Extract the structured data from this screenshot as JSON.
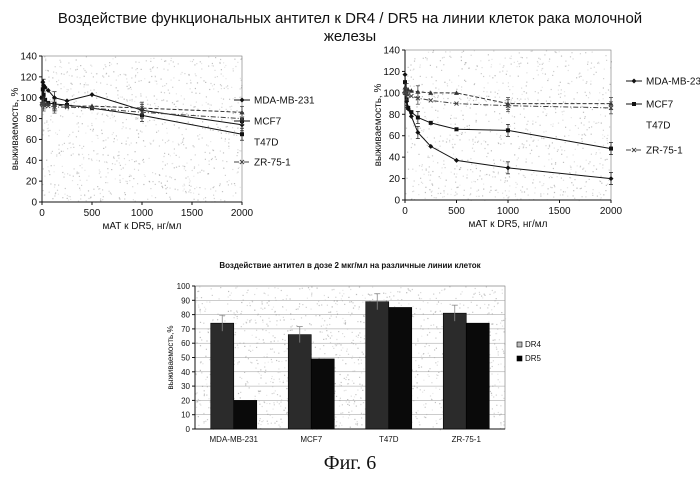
{
  "header": {
    "title_line1": "Воздействие функциональных антител к DR4 / DR5 на линии клеток рака молочной",
    "title_line2": "железы"
  },
  "chart_data": [
    {
      "type": "line",
      "xlabel": "мАТ к DR5, нг/мл",
      "ylabel": "выживаемость, %",
      "xlim": [
        0,
        2000
      ],
      "ylim": [
        0,
        140
      ],
      "xticks": [
        0,
        500,
        1000,
        1500,
        2000
      ],
      "yticks": [
        0,
        20,
        40,
        60,
        80,
        100,
        120,
        140
      ],
      "legend_position": "right",
      "series": [
        {
          "name": "MDA-MB-231",
          "x": [
            0,
            8,
            16,
            31,
            62,
            125,
            250,
            500,
            1000,
            2000
          ],
          "y": [
            100,
            115,
            112,
            110,
            107,
            100,
            97,
            103,
            88,
            74
          ]
        },
        {
          "name": "MCF7",
          "x": [
            0,
            8,
            16,
            31,
            62,
            125,
            250,
            500,
            1000,
            2000
          ],
          "y": [
            100,
            108,
            103,
            98,
            95,
            94,
            93,
            90,
            83,
            65
          ]
        },
        {
          "name": "T47D",
          "x": [
            0,
            8,
            16,
            31,
            62,
            125,
            250,
            500,
            1000,
            2000
          ],
          "y": [
            95,
            96,
            95,
            94,
            94,
            93,
            92,
            92,
            90,
            86
          ]
        },
        {
          "name": "ZR-75-1",
          "x": [
            0,
            8,
            16,
            31,
            62,
            125,
            250,
            500,
            1000,
            2000
          ],
          "y": [
            94,
            93,
            93,
            92,
            92,
            91,
            91,
            90,
            86,
            80
          ]
        }
      ]
    },
    {
      "type": "line",
      "xlabel": "мАТ к DR5, нг/мл",
      "ylabel": "выживаемость, %",
      "xlim": [
        0,
        2000
      ],
      "ylim": [
        0,
        140
      ],
      "xticks": [
        0,
        500,
        1000,
        1500,
        2000
      ],
      "yticks": [
        0,
        20,
        40,
        60,
        80,
        100,
        120,
        140
      ],
      "legend_position": "right",
      "series": [
        {
          "name": "MDA-MB-231",
          "x": [
            0,
            8,
            16,
            31,
            62,
            125,
            250,
            500,
            1000,
            2000
          ],
          "y": [
            117,
            100,
            92,
            85,
            78,
            63,
            50,
            37,
            30,
            20
          ]
        },
        {
          "name": "MCF7",
          "x": [
            0,
            8,
            16,
            31,
            62,
            125,
            250,
            500,
            1000,
            2000
          ],
          "y": [
            110,
            100,
            94,
            86,
            82,
            77,
            72,
            66,
            65,
            48
          ]
        },
        {
          "name": "T47D",
          "x": [
            0,
            8,
            16,
            31,
            62,
            125,
            250,
            500,
            1000,
            2000
          ],
          "y": [
            105,
            104,
            103,
            103,
            102,
            101,
            100,
            100,
            90,
            90
          ]
        },
        {
          "name": "ZR-75-1",
          "x": [
            0,
            8,
            16,
            31,
            62,
            125,
            250,
            500,
            1000,
            2000
          ],
          "y": [
            100,
            100,
            99,
            98,
            97,
            95,
            93,
            90,
            88,
            86
          ]
        }
      ]
    },
    {
      "type": "bar",
      "title": "Воздействие антител в дозе 2 мкг/мл на различные линии клеток",
      "ylabel": "выживаемость,%",
      "ylim": [
        0,
        100
      ],
      "yticks": [
        0,
        10,
        20,
        30,
        40,
        50,
        60,
        70,
        80,
        90,
        100
      ],
      "categories": [
        "MDA-MB-231",
        "MCF7",
        "T47D",
        "ZR-75-1"
      ],
      "legend_position": "right",
      "series": [
        {
          "name": "DR4",
          "values": [
            74,
            66,
            89,
            81
          ]
        },
        {
          "name": "DR5",
          "values": [
            20,
            49,
            85,
            74
          ]
        }
      ]
    }
  ],
  "footer": {
    "caption": "Фиг. 6"
  }
}
